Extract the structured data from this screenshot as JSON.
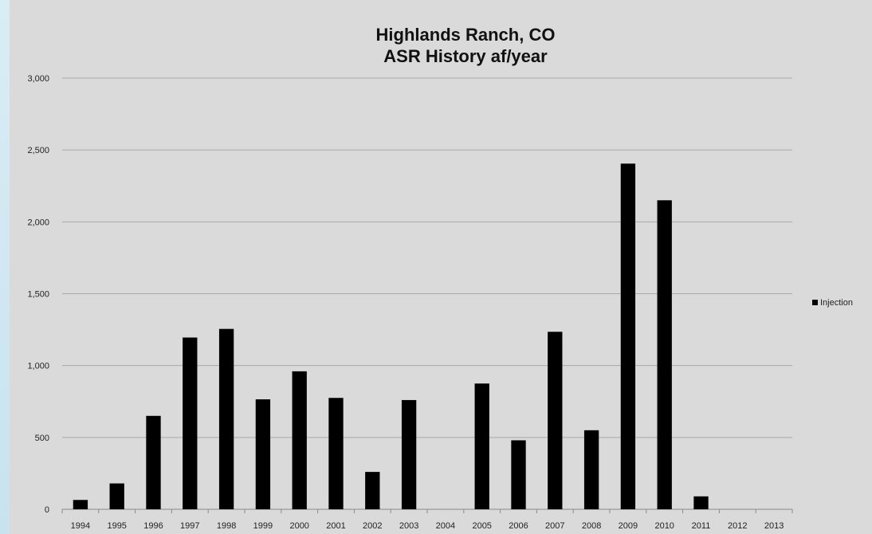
{
  "chart_data": {
    "type": "bar",
    "title": [
      "Highlands Ranch, CO",
      "ASR History af/year"
    ],
    "xlabel": "",
    "ylabel": "",
    "ylim": [
      0,
      3000
    ],
    "yticks": [
      0,
      500,
      1000,
      1500,
      2000,
      2500,
      3000
    ],
    "ytick_labels": [
      "0",
      "500",
      "1,000",
      "1,500",
      "2,000",
      "2,500",
      "3,000"
    ],
    "grid": "horizontal",
    "legend_position": "right",
    "categories": [
      "1994",
      "1995",
      "1996",
      "1997",
      "1998",
      "1999",
      "2000",
      "2001",
      "2002",
      "2003",
      "2004",
      "2005",
      "2006",
      "2007",
      "2008",
      "2009",
      "2010",
      "2011",
      "2012",
      "2013"
    ],
    "series": [
      {
        "name": "Injection",
        "color": "#000000",
        "values": [
          65,
          180,
          650,
          1195,
          1255,
          765,
          960,
          775,
          260,
          760,
          0,
          875,
          480,
          1235,
          550,
          2405,
          2150,
          90,
          0,
          0
        ]
      }
    ]
  }
}
